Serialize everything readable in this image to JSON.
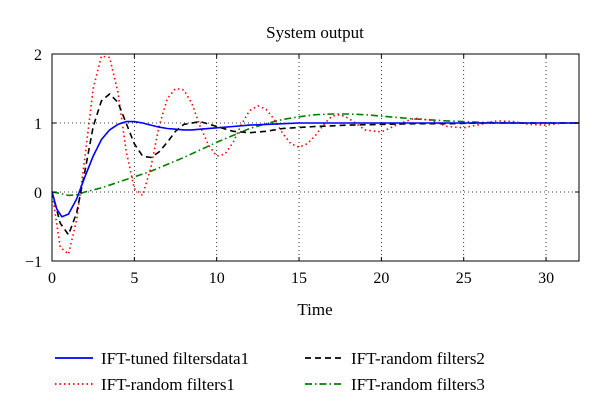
{
  "chart_data": {
    "type": "line",
    "title": "System output",
    "xlabel": "Time",
    "ylabel": "",
    "xlim": [
      0,
      32
    ],
    "ylim": [
      -1,
      2
    ],
    "xticks": [
      0,
      5,
      10,
      15,
      20,
      25,
      30
    ],
    "yticks": [
      -1,
      0,
      1,
      2
    ],
    "grid": "dotted",
    "legend_position": "bottom, two columns",
    "series": [
      {
        "name": "IFT-tuned filtersdata1",
        "color": "#0000ff",
        "dash": "solid",
        "x": [
          0,
          0.3,
          0.6,
          1.0,
          1.5,
          2.0,
          2.5,
          3.0,
          3.5,
          4.0,
          4.5,
          5.0,
          5.5,
          6.0,
          6.5,
          7.0,
          7.5,
          8.0,
          8.5,
          9.0,
          10,
          11,
          12,
          13,
          14,
          15,
          17,
          20,
          23,
          26,
          29,
          32
        ],
        "y": [
          0.0,
          -0.25,
          -0.36,
          -0.32,
          -0.1,
          0.22,
          0.52,
          0.76,
          0.9,
          0.98,
          1.02,
          1.02,
          1.0,
          0.97,
          0.94,
          0.92,
          0.91,
          0.9,
          0.9,
          0.91,
          0.93,
          0.95,
          0.97,
          0.98,
          0.99,
          1.0,
          1.0,
          1.0,
          1.0,
          1.0,
          1.0,
          1.0
        ]
      },
      {
        "name": "IFT-random filters2",
        "color": "#000000",
        "dash": "dashed",
        "x": [
          0,
          0.5,
          1.0,
          1.5,
          2.0,
          2.5,
          3.0,
          3.5,
          4.0,
          4.5,
          5.0,
          5.5,
          6.0,
          6.5,
          7.0,
          7.5,
          8.0,
          9.0,
          10,
          11,
          12,
          13,
          14,
          16,
          18,
          20,
          22,
          24,
          26,
          28,
          30,
          32
        ],
        "y": [
          0.0,
          -0.45,
          -0.62,
          -0.3,
          0.3,
          0.95,
          1.32,
          1.42,
          1.3,
          1.0,
          0.7,
          0.52,
          0.5,
          0.58,
          0.72,
          0.88,
          0.98,
          1.02,
          0.95,
          0.88,
          0.86,
          0.88,
          0.92,
          0.95,
          0.97,
          0.98,
          0.99,
          0.99,
          1.0,
          1.0,
          1.0,
          1.0
        ]
      },
      {
        "name": "IFT-random filters1",
        "color": "#ff0000",
        "dash": "dotted",
        "x": [
          0,
          0.5,
          1.0,
          1.5,
          2.0,
          2.5,
          3.0,
          3.5,
          4.0,
          4.5,
          5.0,
          5.5,
          6.0,
          6.5,
          7.0,
          7.5,
          8.0,
          8.5,
          9.0,
          9.5,
          10,
          10.5,
          11,
          11.5,
          12,
          12.5,
          13,
          13.5,
          14,
          14.5,
          15,
          15.5,
          16,
          16.5,
          17,
          17.5,
          18,
          19,
          20,
          21,
          22,
          23,
          24,
          25,
          26,
          27,
          28,
          29,
          30,
          31,
          32
        ],
        "y": [
          0.0,
          -0.8,
          -0.9,
          -0.4,
          0.5,
          1.5,
          1.97,
          1.95,
          1.45,
          0.6,
          0.05,
          -0.05,
          0.35,
          0.95,
          1.35,
          1.5,
          1.48,
          1.28,
          0.95,
          0.68,
          0.52,
          0.55,
          0.72,
          0.98,
          1.18,
          1.25,
          1.2,
          1.05,
          0.85,
          0.7,
          0.65,
          0.7,
          0.82,
          0.98,
          1.1,
          1.12,
          1.07,
          0.9,
          0.87,
          0.98,
          1.07,
          1.04,
          0.95,
          0.93,
          0.98,
          1.03,
          1.02,
          0.98,
          0.97,
          1.0,
          1.0
        ]
      },
      {
        "name": "IFT-random filters3",
        "color": "#008000",
        "dash": "dashdot",
        "x": [
          0,
          0.5,
          1.0,
          1.5,
          2.0,
          3.0,
          4.0,
          5.0,
          6.0,
          7.0,
          8.0,
          9.0,
          10,
          11,
          12,
          13,
          14,
          15,
          16,
          17,
          18,
          19,
          20,
          21,
          22,
          24,
          26,
          28,
          30,
          32
        ],
        "y": [
          0.0,
          -0.02,
          -0.05,
          -0.04,
          0.0,
          0.06,
          0.14,
          0.22,
          0.3,
          0.4,
          0.5,
          0.61,
          0.72,
          0.82,
          0.92,
          0.99,
          1.05,
          1.09,
          1.12,
          1.13,
          1.13,
          1.12,
          1.1,
          1.08,
          1.06,
          1.03,
          1.01,
          1.0,
          1.0,
          1.0
        ]
      }
    ]
  }
}
